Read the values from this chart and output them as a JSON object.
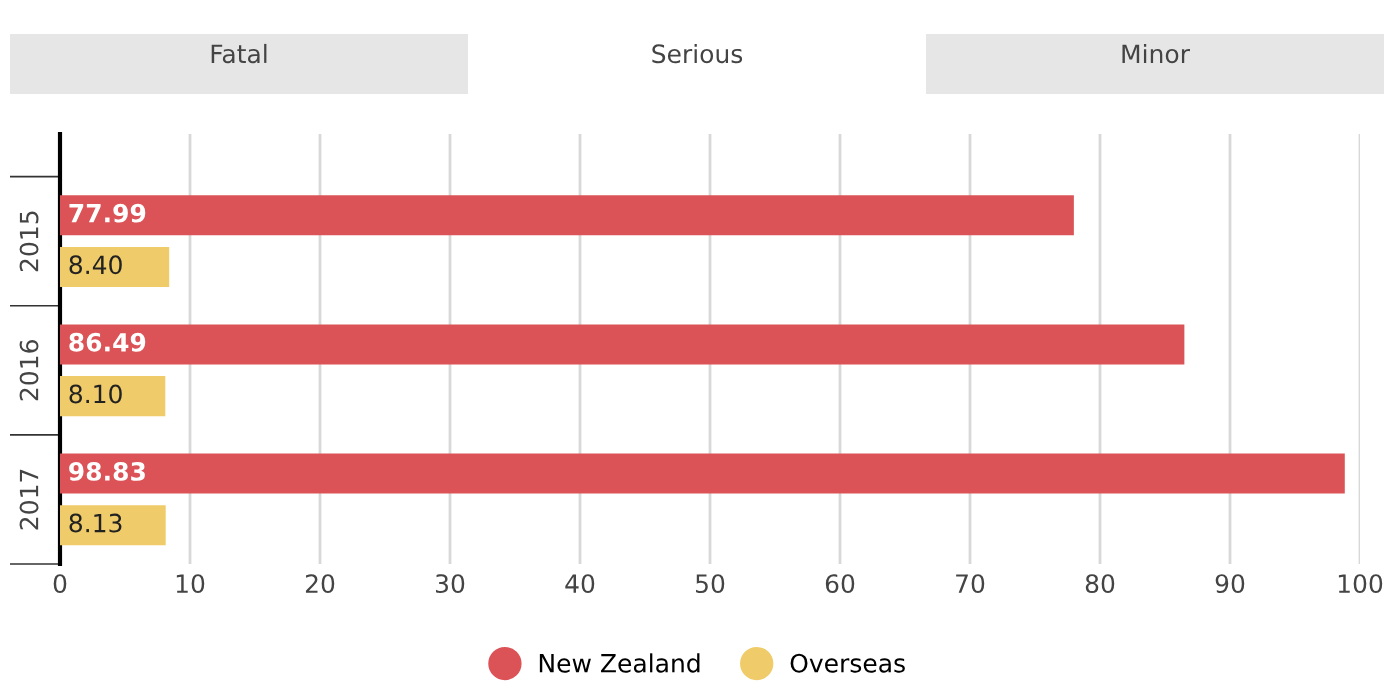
{
  "chart_data": {
    "type": "bar",
    "orientation": "horizontal",
    "categories": [
      "2015",
      "2016",
      "2017"
    ],
    "series": [
      {
        "name": "New Zealand",
        "color": "#dc5357",
        "values": [
          77.99,
          86.49,
          98.83
        ],
        "value_labels": [
          "77.99",
          "86.49",
          "98.83"
        ]
      },
      {
        "name": "Overseas",
        "color": "#f0cb69",
        "values": [
          8.4,
          8.1,
          8.13
        ],
        "value_labels": [
          "8.40",
          "8.10",
          "8.13"
        ]
      }
    ],
    "xlim": [
      0,
      100
    ],
    "xticks": [
      0,
      10,
      20,
      30,
      40,
      50,
      60,
      70,
      80,
      90,
      100
    ],
    "grid": "x",
    "legend": "bottom",
    "annotations": [
      "Fatal",
      "Serious",
      "Minor"
    ]
  }
}
